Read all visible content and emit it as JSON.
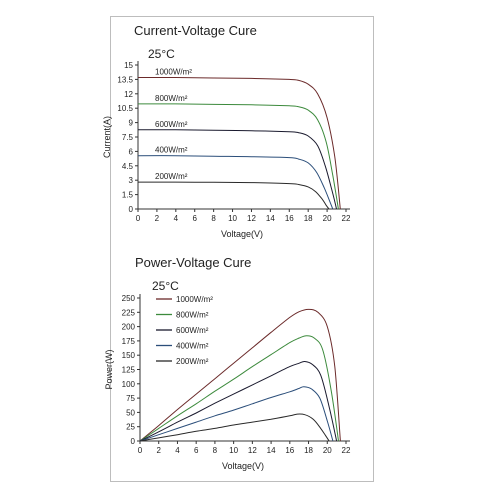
{
  "chart_data": [
    {
      "type": "line",
      "title": "Current-Voltage Cure",
      "subtitle": "25°C",
      "xlabel": "Voltage(V)",
      "ylabel": "Current(A)",
      "xlim": [
        0,
        22
      ],
      "ylim": [
        0,
        15
      ],
      "x_ticks": [
        "0",
        "2",
        "4",
        "6",
        "8",
        "10",
        "12",
        "14",
        "16",
        "18",
        "20",
        "22"
      ],
      "y_ticks": [
        "0",
        "1.5",
        "3",
        "4.5",
        "6",
        "7.5",
        "9",
        "10.5",
        "12",
        "13.5",
        "15"
      ],
      "grid": false,
      "series": [
        {
          "name": "1000W/m²",
          "color": "#6b2a2a",
          "isc": 13.7,
          "voc": 21.4,
          "points": [
            [
              0,
              13.7
            ],
            [
              4,
              13.7
            ],
            [
              8,
              13.65
            ],
            [
              12,
              13.6
            ],
            [
              16,
              13.5
            ],
            [
              17,
              13.4
            ],
            [
              18,
              13.0
            ],
            [
              19,
              12.0
            ],
            [
              20,
              9.5
            ],
            [
              20.8,
              5.5
            ],
            [
              21.4,
              0
            ]
          ]
        },
        {
          "name": "800W/m²",
          "color": "#3c8a3c",
          "isc": 10.9,
          "voc": 21.2,
          "points": [
            [
              0,
              10.95
            ],
            [
              4,
              10.95
            ],
            [
              8,
              10.9
            ],
            [
              12,
              10.85
            ],
            [
              16,
              10.75
            ],
            [
              17,
              10.65
            ],
            [
              18,
              10.3
            ],
            [
              19,
              9.3
            ],
            [
              19.9,
              7.0
            ],
            [
              20.6,
              3.5
            ],
            [
              21.2,
              0
            ]
          ]
        },
        {
          "name": "600W/m²",
          "color": "#1a1a2e",
          "isc": 8.2,
          "voc": 21.0,
          "points": [
            [
              0,
              8.25
            ],
            [
              4,
              8.25
            ],
            [
              8,
              8.2
            ],
            [
              12,
              8.15
            ],
            [
              16,
              8.05
            ],
            [
              17,
              7.95
            ],
            [
              18,
              7.6
            ],
            [
              19,
              6.6
            ],
            [
              19.8,
              4.5
            ],
            [
              20.5,
              2.0
            ],
            [
              21.0,
              0
            ]
          ]
        },
        {
          "name": "400W/m²",
          "color": "#2b4e7a",
          "isc": 5.5,
          "voc": 20.6,
          "points": [
            [
              0,
              5.55
            ],
            [
              4,
              5.55
            ],
            [
              8,
              5.5
            ],
            [
              12,
              5.45
            ],
            [
              16,
              5.35
            ],
            [
              17,
              5.2
            ],
            [
              18,
              4.8
            ],
            [
              18.9,
              3.8
            ],
            [
              19.7,
              2.2
            ],
            [
              20.2,
              1.0
            ],
            [
              20.6,
              0
            ]
          ]
        },
        {
          "name": "200W/m²",
          "color": "#2a2a2a",
          "isc": 2.7,
          "voc": 20.2,
          "points": [
            [
              0,
              2.8
            ],
            [
              4,
              2.8
            ],
            [
              8,
              2.78
            ],
            [
              12,
              2.75
            ],
            [
              16,
              2.65
            ],
            [
              17,
              2.55
            ],
            [
              18,
              2.3
            ],
            [
              18.8,
              1.8
            ],
            [
              19.5,
              1.0
            ],
            [
              19.9,
              0.4
            ],
            [
              20.2,
              0
            ]
          ]
        }
      ]
    },
    {
      "type": "line",
      "title": "Power-Voltage Cure",
      "subtitle": "25°C",
      "xlabel": "Voltage(V)",
      "ylabel": "Power(W)",
      "xlim": [
        0,
        22
      ],
      "ylim": [
        0,
        250
      ],
      "x_ticks": [
        "0",
        "2",
        "4",
        "6",
        "8",
        "10",
        "12",
        "14",
        "16",
        "18",
        "20",
        "22"
      ],
      "y_ticks": [
        "0",
        "25",
        "50",
        "75",
        "100",
        "125",
        "150",
        "175",
        "200",
        "225",
        "250"
      ],
      "grid": false,
      "legend_position": "top-left",
      "series": [
        {
          "name": "1000W/m²",
          "color": "#6b2a2a",
          "points": [
            [
              0,
              0
            ],
            [
              2,
              27
            ],
            [
              4,
              55
            ],
            [
              6,
              82
            ],
            [
              8,
              109
            ],
            [
              10,
              136
            ],
            [
              12,
              163
            ],
            [
              14,
              190
            ],
            [
              16,
              216
            ],
            [
              17,
              226
            ],
            [
              18,
              230
            ],
            [
              19,
              225
            ],
            [
              20,
              200
            ],
            [
              20.8,
              130
            ],
            [
              21.4,
              0
            ]
          ]
        },
        {
          "name": "800W/m²",
          "color": "#3c8a3c",
          "points": [
            [
              0,
              0
            ],
            [
              2,
              22
            ],
            [
              4,
              44
            ],
            [
              6,
              65
            ],
            [
              8,
              87
            ],
            [
              10,
              108
            ],
            [
              12,
              130
            ],
            [
              14,
              151
            ],
            [
              16,
              172
            ],
            [
              17,
              180
            ],
            [
              17.8,
              184
            ],
            [
              18.6,
              180
            ],
            [
              19.5,
              160
            ],
            [
              20.4,
              90
            ],
            [
              21.2,
              0
            ]
          ]
        },
        {
          "name": "600W/m²",
          "color": "#1a1a2e",
          "points": [
            [
              0,
              0
            ],
            [
              2,
              16
            ],
            [
              4,
              33
            ],
            [
              6,
              49
            ],
            [
              8,
              66
            ],
            [
              10,
              82
            ],
            [
              12,
              98
            ],
            [
              14,
              114
            ],
            [
              16,
              130
            ],
            [
              17,
              136
            ],
            [
              17.6,
              139
            ],
            [
              18.4,
              134
            ],
            [
              19.3,
              115
            ],
            [
              20.2,
              60
            ],
            [
              21.0,
              0
            ]
          ]
        },
        {
          "name": "400W/m²",
          "color": "#2b4e7a",
          "points": [
            [
              0,
              0
            ],
            [
              2,
              11
            ],
            [
              4,
              22
            ],
            [
              6,
              33
            ],
            [
              8,
              44
            ],
            [
              10,
              54
            ],
            [
              12,
              65
            ],
            [
              14,
              76
            ],
            [
              16,
              86
            ],
            [
              17,
              92
            ],
            [
              17.5,
              95
            ],
            [
              18.3,
              91
            ],
            [
              19.2,
              75
            ],
            [
              20.0,
              35
            ],
            [
              20.6,
              0
            ]
          ]
        },
        {
          "name": "200W/m²",
          "color": "#2a2a2a",
          "points": [
            [
              0,
              0
            ],
            [
              2,
              5.5
            ],
            [
              4,
              11
            ],
            [
              6,
              17
            ],
            [
              8,
              22
            ],
            [
              10,
              28
            ],
            [
              12,
              33
            ],
            [
              14,
              38
            ],
            [
              16,
              44
            ],
            [
              16.8,
              47
            ],
            [
              17.6,
              46
            ],
            [
              18.5,
              38
            ],
            [
              19.3,
              22
            ],
            [
              19.8,
              10
            ],
            [
              20.2,
              0
            ]
          ]
        }
      ]
    }
  ]
}
